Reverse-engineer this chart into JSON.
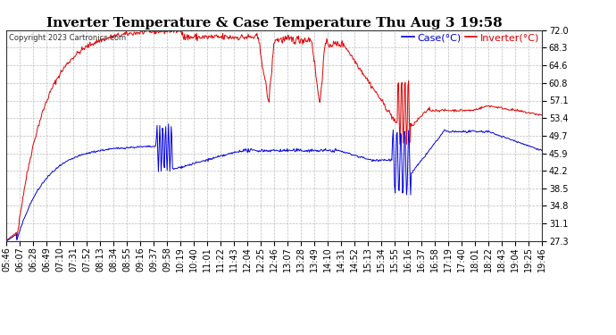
{
  "title": "Inverter Temperature & Case Temperature Thu Aug 3 19:58",
  "copyright": "Copyright 2023 Cartronics.com",
  "legend_case": "Case(°C)",
  "legend_inverter": "Inverter(°C)",
  "yticks": [
    27.3,
    31.1,
    34.8,
    38.5,
    42.2,
    45.9,
    49.7,
    53.4,
    57.1,
    60.8,
    64.6,
    68.3,
    72.0
  ],
  "ymin": 27.3,
  "ymax": 72.0,
  "case_color": "#0000dd",
  "inverter_color": "#dd0000",
  "bg_color": "#ffffff",
  "grid_color": "#aaaaaa",
  "title_fontsize": 11,
  "copyright_fontsize": 6,
  "tick_fontsize": 7,
  "legend_fontsize": 8,
  "time_labels": [
    "05:46",
    "06:07",
    "06:28",
    "06:49",
    "07:10",
    "07:31",
    "07:52",
    "08:13",
    "08:34",
    "08:55",
    "09:16",
    "09:37",
    "09:58",
    "10:19",
    "10:40",
    "11:01",
    "11:22",
    "11:43",
    "12:04",
    "12:25",
    "12:46",
    "13:07",
    "13:28",
    "13:49",
    "14:10",
    "14:31",
    "14:52",
    "15:13",
    "15:34",
    "15:55",
    "16:16",
    "16:37",
    "16:58",
    "17:19",
    "17:40",
    "18:01",
    "18:22",
    "18:43",
    "19:04",
    "19:25",
    "19:46"
  ]
}
